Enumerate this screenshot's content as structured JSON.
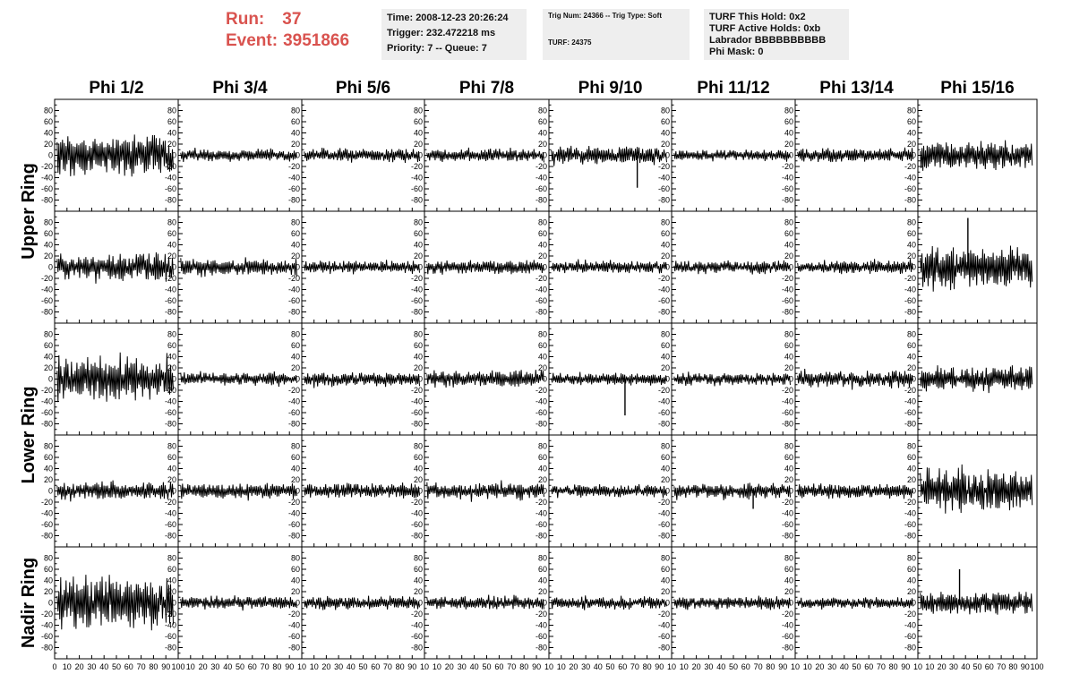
{
  "header": {
    "run_label": "Run:",
    "run_value": "37",
    "event_label": "Event:",
    "event_value": "3951866"
  },
  "info_boxes": {
    "time": [
      "Time: 2008-12-23 20:26:24",
      "Trigger: 232.472218 ms",
      "Priority: 7 -- Queue: 7"
    ],
    "trig": [
      "Trig Num: 24366 -- Trig Type: Soft",
      "TURF: 24375"
    ],
    "turf": [
      "TURF This Hold: 0x2",
      "TURF Active Holds: 0xb",
      "Labrador BBBBBBBBBB",
      "Phi Mask: 0"
    ]
  },
  "chart_data": {
    "type": "line",
    "phi_labels": [
      "Phi 1/2",
      "Phi 3/4",
      "Phi 5/6",
      "Phi 7/8",
      "Phi 9/10",
      "Phi 11/12",
      "Phi 13/14",
      "Phi 15/16"
    ],
    "ring_labels": [
      {
        "label": "Upper Ring",
        "rows": [
          0,
          1
        ]
      },
      {
        "label": "Lower Ring",
        "rows": [
          2,
          3
        ]
      },
      {
        "label": "Nadir Ring",
        "rows": [
          4,
          4
        ]
      }
    ],
    "xlim": [
      0,
      100
    ],
    "ylim": [
      -100,
      100
    ],
    "y_ticks": [
      80,
      60,
      40,
      20,
      0,
      -20,
      -40,
      -60,
      -80
    ],
    "x_tick_labels_first": [
      "0",
      "10",
      "20",
      "30",
      "40",
      "50",
      "60",
      "70",
      "80",
      "90",
      "100"
    ],
    "x_tick_labels_other": [
      "10",
      "20",
      "30",
      "40",
      "50",
      "60",
      "70",
      "80",
      "90",
      "10"
    ],
    "x_tick_labels_last": [
      "10",
      "20",
      "30",
      "40",
      "50",
      "60",
      "70",
      "80",
      "90",
      "100"
    ],
    "amplitudes": [
      [
        40,
        12,
        13,
        13,
        18,
        11,
        13,
        28
      ],
      [
        28,
        17,
        12,
        14,
        13,
        13,
        14,
        42
      ],
      [
        45,
        13,
        14,
        16,
        12,
        13,
        17,
        25
      ],
      [
        18,
        16,
        16,
        17,
        12,
        15,
        14,
        42
      ],
      [
        50,
        13,
        13,
        13,
        13,
        13,
        11,
        22
      ]
    ],
    "spikes": [
      {
        "row": 0,
        "col": 4,
        "x": 72,
        "y": -58
      },
      {
        "row": 1,
        "col": 7,
        "x": 42,
        "y": 88
      },
      {
        "row": 2,
        "col": 4,
        "x": 62,
        "y": -65
      },
      {
        "row": 3,
        "col": 5,
        "x": 66,
        "y": -32
      },
      {
        "row": 4,
        "col": 7,
        "x": 35,
        "y": 60
      }
    ]
  }
}
